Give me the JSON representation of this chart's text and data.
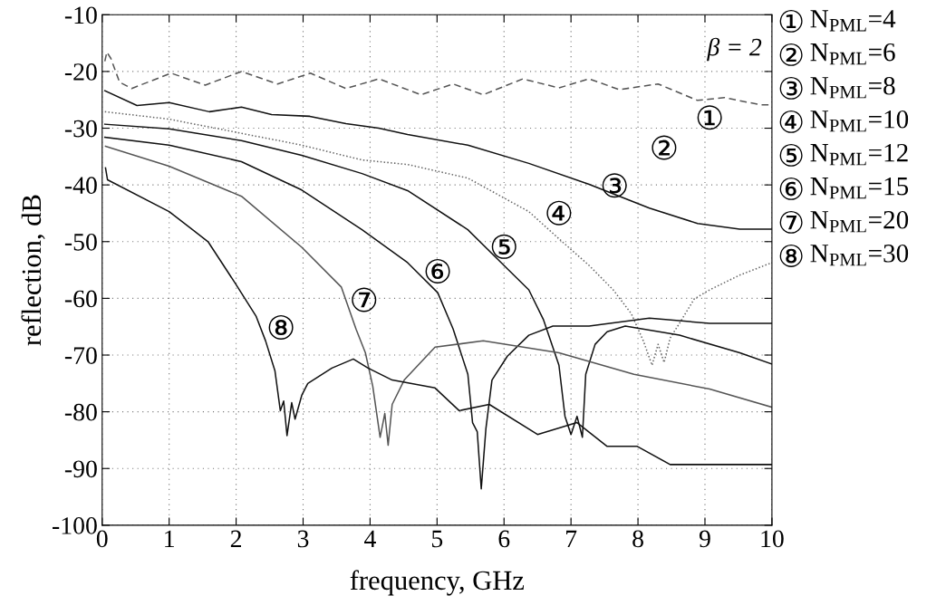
{
  "chart_data": {
    "type": "line",
    "xlabel": "frequency, GHz",
    "ylabel": "reflection, dB",
    "xlim": [
      0,
      10
    ],
    "ylim": [
      -100,
      -10
    ],
    "xticks": [
      0,
      1,
      2,
      3,
      4,
      5,
      6,
      7,
      8,
      9,
      10
    ],
    "yticks": [
      -100,
      -90,
      -80,
      -70,
      -60,
      -50,
      -40,
      -30,
      -20,
      -10
    ],
    "grid": true,
    "marker": "none",
    "series": [
      {
        "color": "#555555",
        "line_style": "dashed",
        "x": [
          0.04,
          0.07,
          0.13,
          0.26,
          0.44,
          1.03,
          1.54,
          2.08,
          2.62,
          3.11,
          3.64,
          4.13,
          4.76,
          5.24,
          5.69,
          6.28,
          6.82,
          7.27,
          7.72,
          8.3,
          8.89,
          9.29,
          9.84,
          10
        ],
        "values": [
          -18.2,
          -16.6,
          -17.7,
          -21.9,
          -23.0,
          -20.3,
          -22.4,
          -20.0,
          -22.2,
          -20.3,
          -23.0,
          -21.3,
          -24.1,
          -22.2,
          -24.1,
          -21.3,
          -22.9,
          -21.3,
          -23.2,
          -22.2,
          -25.1,
          -24.6,
          -25.9,
          -25.9
        ]
      },
      {
        "color": "#111111",
        "line_style": "solid",
        "x": [
          0.04,
          0.52,
          1.0,
          1.6,
          2.08,
          2.53,
          3.1,
          3.64,
          4.13,
          4.56,
          5.46,
          6.37,
          7.27,
          8.17,
          8.89,
          9.52,
          10
        ],
        "values": [
          -23.4,
          -26.0,
          -25.5,
          -27.1,
          -26.3,
          -27.6,
          -27.9,
          -29.2,
          -30.0,
          -31.1,
          -33.0,
          -36.2,
          -39.9,
          -44.1,
          -46.8,
          -47.8,
          -47.8
        ]
      },
      {
        "color": "#666666",
        "line_style": "dotted",
        "x": [
          0.04,
          1.0,
          2.08,
          2.98,
          3.88,
          4.56,
          5.46,
          6.37,
          6.82,
          7.27,
          7.63,
          7.9,
          8.08,
          8.21,
          8.3,
          8.39,
          8.48,
          8.62,
          8.84,
          9.07,
          9.52,
          10
        ],
        "values": [
          -27.1,
          -28.4,
          -30.9,
          -33.0,
          -35.6,
          -36.4,
          -38.8,
          -44.7,
          -49.5,
          -54.2,
          -58.5,
          -62.7,
          -67.5,
          -71.8,
          -68.1,
          -71.3,
          -67.0,
          -64.4,
          -60.1,
          -58.5,
          -55.9,
          -53.7
        ]
      },
      {
        "color": "#111111",
        "line_style": "solid",
        "x": [
          0.04,
          1.0,
          2.08,
          2.98,
          3.88,
          4.56,
          5.46,
          6.05,
          6.37,
          6.59,
          6.82,
          6.91,
          7.0,
          7.09,
          7.17,
          7.22,
          7.36,
          7.54,
          7.81,
          8.62,
          9.52,
          10
        ],
        "values": [
          -29.3,
          -30.1,
          -32.2,
          -34.8,
          -38.0,
          -41.0,
          -47.9,
          -54.8,
          -58.5,
          -63.8,
          -71.8,
          -80.8,
          -84.0,
          -80.8,
          -84.5,
          -73.4,
          -68.1,
          -65.9,
          -64.9,
          -66.5,
          -69.6,
          -71.6
        ]
      },
      {
        "color": "#111111",
        "line_style": "solid",
        "x": [
          0.04,
          1.0,
          2.08,
          2.98,
          3.88,
          4.56,
          5.01,
          5.24,
          5.46,
          5.53,
          5.6,
          5.66,
          5.73,
          5.82,
          6.05,
          6.37,
          6.73,
          7.27,
          8.17,
          9.07,
          10
        ],
        "values": [
          -31.6,
          -33.0,
          -35.9,
          -40.9,
          -47.9,
          -53.7,
          -59.0,
          -65.4,
          -73.4,
          -81.9,
          -83.5,
          -93.6,
          -82.9,
          -74.4,
          -70.2,
          -66.5,
          -64.9,
          -64.9,
          -63.5,
          -64.4,
          -64.4
        ]
      },
      {
        "color": "#555555",
        "line_style": "solid",
        "x": [
          0.05,
          1.0,
          2.08,
          2.98,
          3.57,
          3.79,
          3.93,
          4.04,
          4.15,
          4.22,
          4.27,
          4.33,
          4.51,
          4.97,
          5.69,
          6.82,
          7.94,
          9.07,
          10
        ],
        "values": [
          -33.2,
          -36.7,
          -42.0,
          -51.0,
          -58.0,
          -65.4,
          -69.6,
          -75.5,
          -84.5,
          -80.3,
          -85.9,
          -78.7,
          -74.4,
          -68.6,
          -67.5,
          -69.6,
          -73.4,
          -76.0,
          -79.2
        ]
      },
      {
        "color": "#111111",
        "line_style": "solid",
        "x": [
          0.05,
          0.08,
          1.0,
          1.58,
          1.99,
          2.3,
          2.44,
          2.58,
          2.66,
          2.71,
          2.76,
          2.83,
          2.88,
          2.98,
          3.07,
          3.43,
          3.75,
          3.97,
          4.33,
          4.97,
          5.33,
          5.78,
          6.5,
          7.09,
          7.54,
          7.99,
          8.48,
          10
        ],
        "values": [
          -37.0,
          -39.1,
          -44.7,
          -50.0,
          -57.4,
          -63.2,
          -67.5,
          -72.8,
          -79.8,
          -78.1,
          -84.2,
          -78.4,
          -81.3,
          -77.1,
          -75.0,
          -72.3,
          -70.7,
          -72.3,
          -74.4,
          -75.8,
          -79.8,
          -78.7,
          -84.0,
          -81.9,
          -86.1,
          -86.1,
          -89.3,
          -89.3
        ]
      }
    ],
    "annotations": [
      "①",
      "②",
      "③",
      "④",
      "⑤",
      "⑥",
      "⑦",
      "⑧",
      "β = 2",
      "① N$_{PML}$=4",
      "② N$_{PML}$=6",
      "③ N$_{PML}$=8",
      "④ N$_{PML}$=10",
      "⑤ N$_{PML}$=12",
      "⑥ N$_{PML}$=15",
      "⑦ N$_{PML}$=20",
      "⑧ N$_{PML}$=30"
    ]
  }
}
